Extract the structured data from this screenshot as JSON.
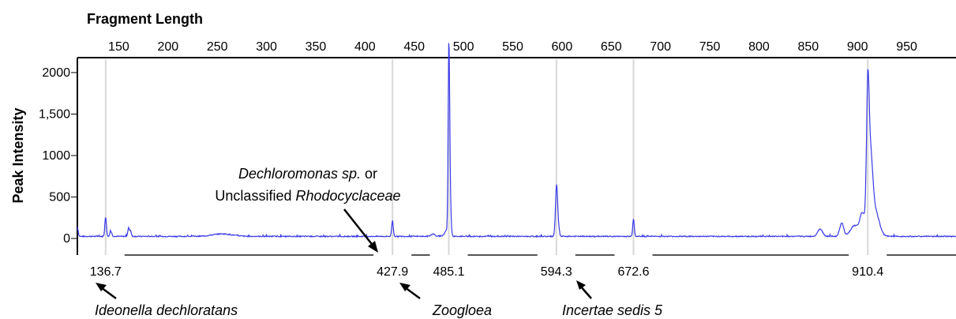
{
  "chart_data": {
    "type": "line",
    "title": "",
    "xlabel": "Fragment Length",
    "ylabel": "Peak Intensity",
    "xlim": [
      108,
      1000
    ],
    "ylim": [
      -200,
      2180
    ],
    "x_ticks": [
      {
        "value": 150,
        "label": "150"
      },
      {
        "value": 200,
        "label": "200"
      },
      {
        "value": 250,
        "label": "250"
      },
      {
        "value": 300,
        "label": "300"
      },
      {
        "value": 350,
        "label": "350"
      },
      {
        "value": 400,
        "label": "400"
      },
      {
        "value": 450,
        "label": "450"
      },
      {
        "value": 500,
        "label": "500"
      },
      {
        "value": 550,
        "label": "550"
      },
      {
        "value": 600,
        "label": "600"
      },
      {
        "value": 650,
        "label": "650"
      },
      {
        "value": 700,
        "label": "700"
      },
      {
        "value": 750,
        "label": "750"
      },
      {
        "value": 800,
        "label": "800"
      },
      {
        "value": 850,
        "label": "850"
      },
      {
        "value": 900,
        "label": "900"
      },
      {
        "value": 950,
        "label": "950"
      }
    ],
    "y_ticks": [
      {
        "value": 0,
        "label": "0"
      },
      {
        "value": 500,
        "label": "500"
      },
      {
        "value": 1000,
        "label": "1000"
      },
      {
        "value": 1500,
        "label": "1,500"
      },
      {
        "value": 2000,
        "label": "2000"
      }
    ],
    "grid_x": [
      136.7,
      427.9,
      485.1,
      594.3,
      672.6,
      910.4
    ],
    "baseline": 25,
    "peaks": [
      {
        "x": 108,
        "y": 110,
        "w": 0.8
      },
      {
        "x": 136.7,
        "y": 230,
        "w": 0.8
      },
      {
        "x": 142,
        "y": 60,
        "w": 1.0
      },
      {
        "x": 160,
        "y": 100,
        "w": 0.8
      },
      {
        "x": 162,
        "y": 70,
        "w": 0.8
      },
      {
        "x": 255,
        "y": 30,
        "w": 10
      },
      {
        "x": 427.9,
        "y": 190,
        "w": 0.8
      },
      {
        "x": 469,
        "y": 30,
        "w": 2
      },
      {
        "x": 483,
        "y": 70,
        "w": 2
      },
      {
        "x": 485.1,
        "y": 1880,
        "w": 0.7
      },
      {
        "x": 486,
        "y": 700,
        "w": 1.0
      },
      {
        "x": 594.3,
        "y": 490,
        "w": 1.0
      },
      {
        "x": 595.5,
        "y": 200,
        "w": 1.2
      },
      {
        "x": 672.6,
        "y": 210,
        "w": 0.8
      },
      {
        "x": 862,
        "y": 90,
        "w": 2.5
      },
      {
        "x": 884,
        "y": 160,
        "w": 2.0
      },
      {
        "x": 897,
        "y": 130,
        "w": 4
      },
      {
        "x": 905,
        "y": 270,
        "w": 2.5
      },
      {
        "x": 910.4,
        "y": 1440,
        "w": 1.3
      },
      {
        "x": 913,
        "y": 900,
        "w": 2.3
      },
      {
        "x": 918,
        "y": 300,
        "w": 4
      }
    ],
    "series": [
      {
        "color": "#3a3ae8"
      }
    ],
    "x_category_labels": [
      {
        "x": 136.7,
        "label": "136.7"
      },
      {
        "x": 427.9,
        "label": "427.9"
      },
      {
        "x": 485.1,
        "label": "485.1"
      },
      {
        "x": 594.3,
        "label": "594.3"
      },
      {
        "x": 672.6,
        "label": "672.6"
      },
      {
        "x": 910.4,
        "label": "910.4"
      }
    ],
    "annotations": [
      {
        "key": "dechloromonas",
        "line1_italic": "Dechloromonas sp.",
        "line1_plain": " or",
        "line2_plain": "Unclassified ",
        "line2_italic": "Rhodocyclaceae"
      },
      {
        "key": "ideonella",
        "italic": "Ideonella dechloratans"
      },
      {
        "key": "zoogloea",
        "italic": "Zoogloea"
      },
      {
        "key": "incertae",
        "italic": "Incertae sedis 5"
      }
    ],
    "colors": {
      "line": "#3a3ae8",
      "grid": "#d8d8d8",
      "frame": "#000000",
      "segment": "#555555"
    }
  }
}
